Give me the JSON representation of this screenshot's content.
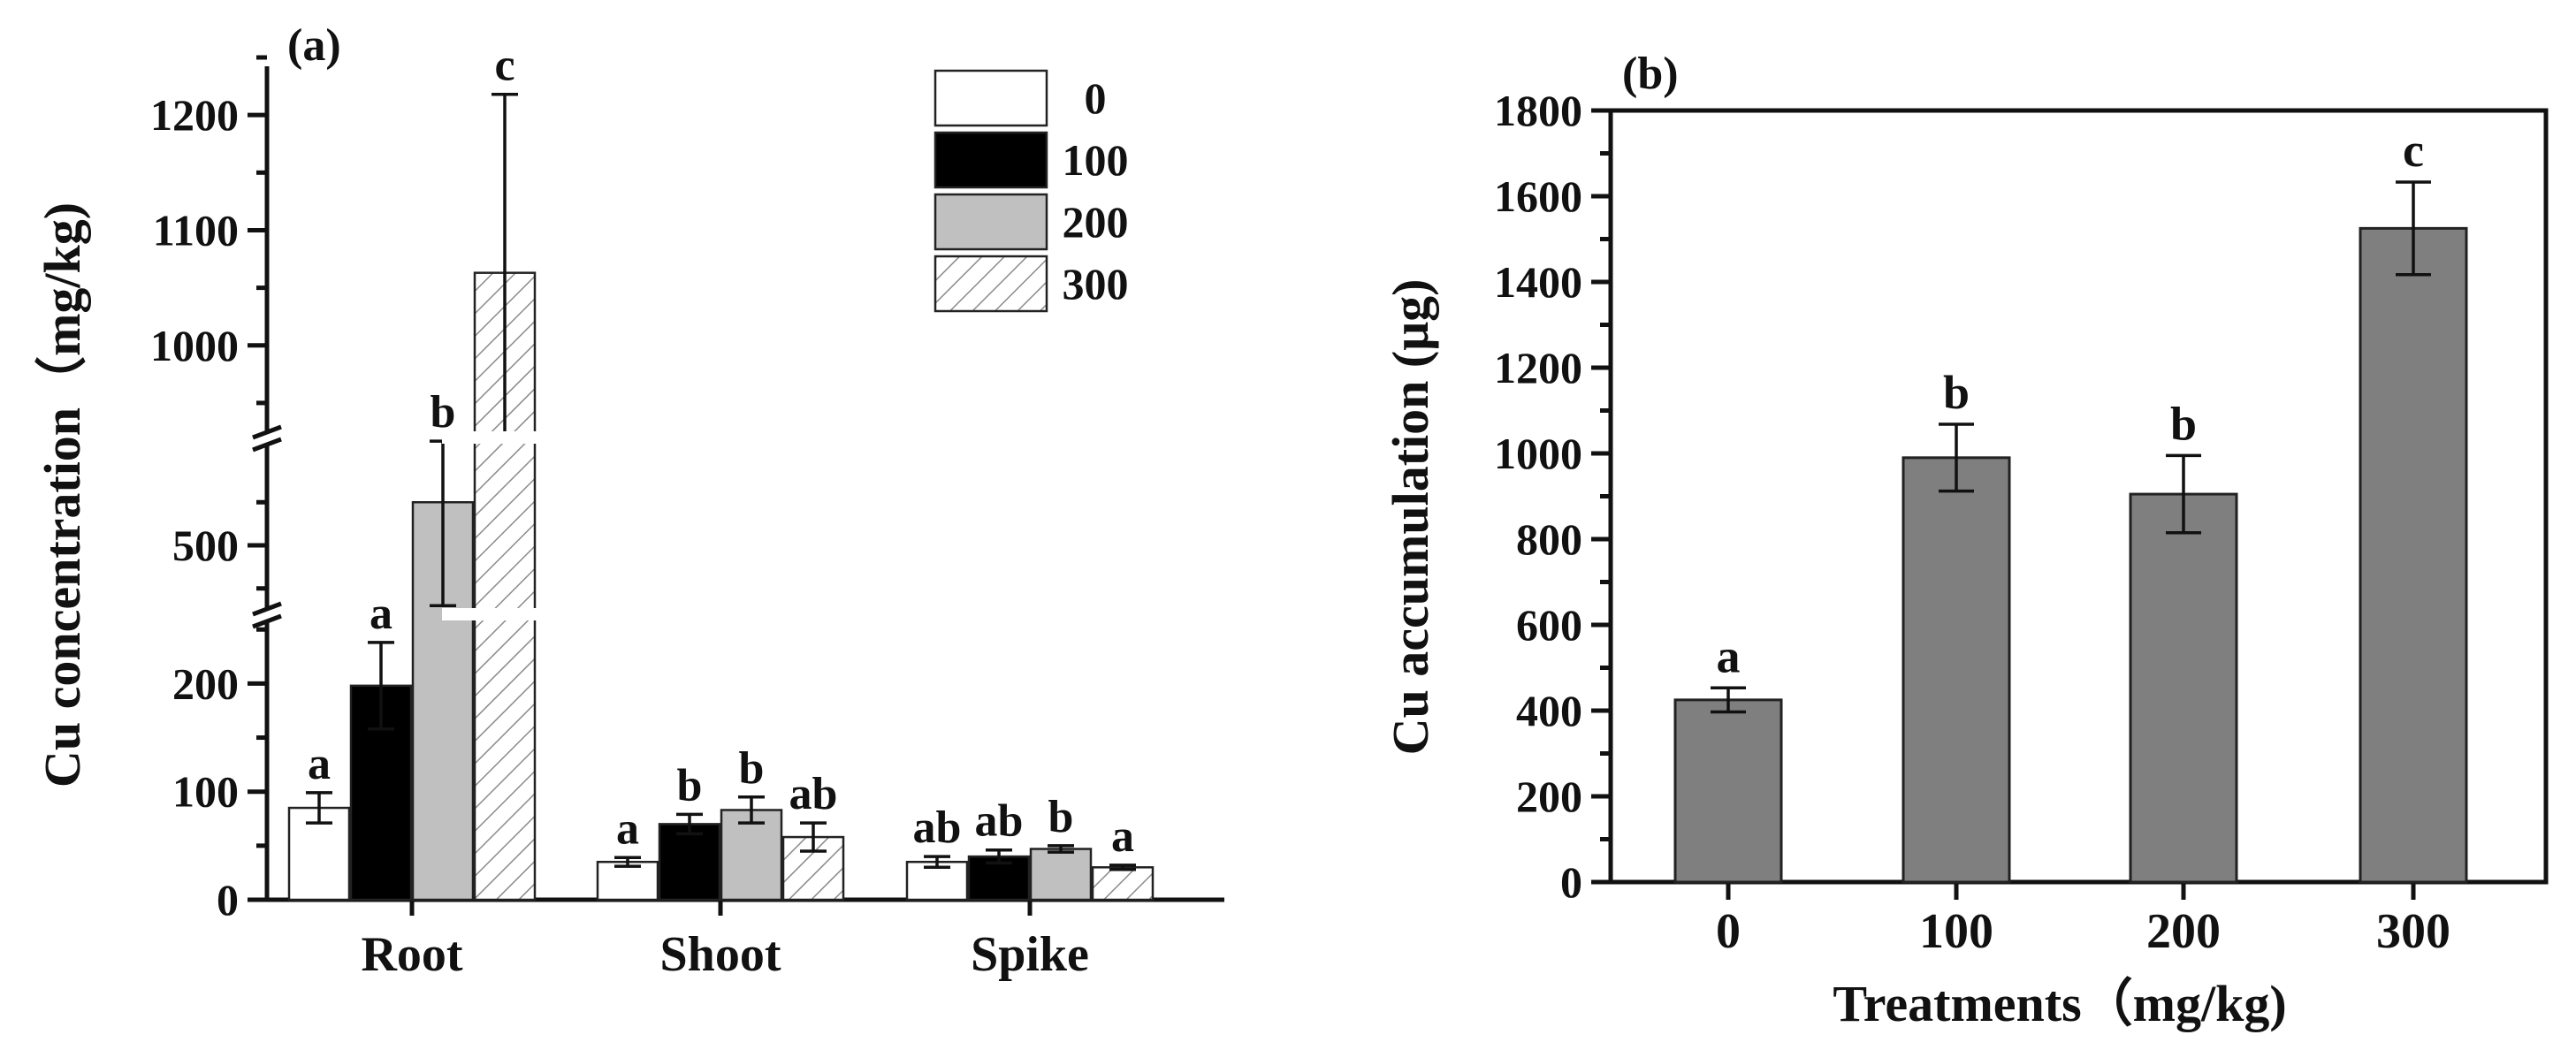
{
  "chart_data": [
    {
      "panel_label": "(a)",
      "type": "bar",
      "ylabel": "Cu concentration（mg/kg)",
      "xlabel": "",
      "categories": [
        "Root",
        "Shoot",
        "Spike"
      ],
      "y_axis_breaks": [
        [
          260,
          420
        ],
        [
          620,
          920
        ]
      ],
      "ylim": [
        0,
        1250
      ],
      "yticks": [
        {
          "value": 0,
          "label": "0"
        },
        {
          "value": 100,
          "label": "100"
        },
        {
          "value": 200,
          "label": "200"
        },
        {
          "value": 500,
          "label": "500"
        },
        {
          "value": 1000,
          "label": "1000"
        },
        {
          "value": 1100,
          "label": "1100"
        },
        {
          "value": 1200,
          "label": "1200"
        }
      ],
      "legend_position": "top-right",
      "series": [
        {
          "name": "0",
          "fill": "#ffffff",
          "pattern": "none",
          "values": [
            85,
            35,
            35
          ],
          "errors": [
            14,
            4,
            5
          ],
          "letters": [
            "a",
            "a",
            "ab"
          ]
        },
        {
          "name": "100",
          "fill": "#000000",
          "pattern": "none",
          "values": [
            198,
            70,
            40
          ],
          "errors": [
            40,
            9,
            6
          ],
          "letters": [
            "a",
            "b",
            "ab"
          ]
        },
        {
          "name": "200",
          "fill": "#c0c0c0",
          "pattern": "none",
          "values": [
            550,
            83,
            47
          ],
          "errors": [
            120,
            12,
            3
          ],
          "letters": [
            "b",
            "b",
            "b"
          ]
        },
        {
          "name": "300",
          "fill": "#ffffff",
          "pattern": "hatch",
          "values": [
            1063,
            58,
            30
          ],
          "errors": [
            155,
            13,
            2
          ],
          "letters": [
            "c",
            "ab",
            "a"
          ]
        }
      ]
    },
    {
      "panel_label": "(b)",
      "type": "bar",
      "ylabel": "Cu accumulation (μg)",
      "xlabel": "Treatments（mg/kg)",
      "categories": [
        "0",
        "100",
        "200",
        "300"
      ],
      "ylim": [
        0,
        1800
      ],
      "yticks": [
        0,
        200,
        400,
        600,
        800,
        1000,
        1200,
        1400,
        1600,
        1800
      ],
      "bar_color": "#7f7f7f",
      "series": [
        {
          "values": [
            425,
            990,
            905,
            1525
          ],
          "errors": [
            28,
            78,
            90,
            108
          ],
          "letters": [
            "a",
            "b",
            "b",
            "c"
          ]
        }
      ]
    }
  ]
}
